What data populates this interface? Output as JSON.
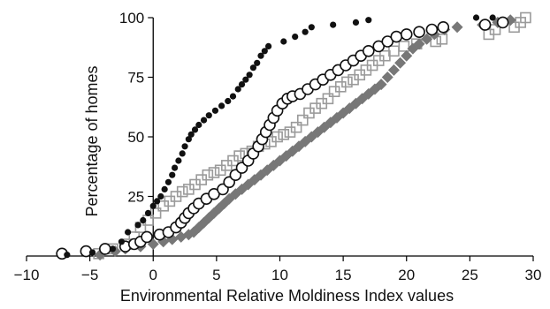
{
  "chart_data": {
    "type": "scatter",
    "title": "",
    "xlabel": "Environmental Relative Moldiness Index values",
    "ylabel": "Percentage of homes",
    "xlim": [
      -10,
      30
    ],
    "ylim": [
      0,
      100
    ],
    "xticks": [
      -10,
      -5,
      0,
      5,
      10,
      15,
      20,
      25,
      30
    ],
    "xtick_labels": [
      "−10",
      "−5",
      "0",
      "5",
      "10",
      "15",
      "20",
      "25",
      "30"
    ],
    "yticks": [
      25,
      50,
      75,
      100
    ],
    "ytick_labels": [
      "25",
      "50",
      "75",
      "100"
    ],
    "grid": false,
    "legend": "none",
    "series": [
      {
        "marker": "filled-circle",
        "color": "#111111",
        "points": [
          [
            -6.8,
            0.5
          ],
          [
            -4.8,
            1.5
          ],
          [
            -3.2,
            3
          ],
          [
            -2.5,
            6
          ],
          [
            -2.0,
            10
          ],
          [
            -1.2,
            13
          ],
          [
            -0.8,
            15
          ],
          [
            -0.4,
            18
          ],
          [
            0.0,
            21
          ],
          [
            0.3,
            23
          ],
          [
            0.6,
            25
          ],
          [
            0.9,
            28
          ],
          [
            1.2,
            31
          ],
          [
            1.5,
            34
          ],
          [
            1.7,
            37
          ],
          [
            2.0,
            40
          ],
          [
            2.3,
            43
          ],
          [
            2.5,
            46
          ],
          [
            2.8,
            49
          ],
          [
            3.0,
            51
          ],
          [
            3.3,
            53
          ],
          [
            3.6,
            55
          ],
          [
            4.0,
            57
          ],
          [
            4.4,
            59
          ],
          [
            4.9,
            61
          ],
          [
            5.4,
            63
          ],
          [
            5.9,
            65
          ],
          [
            6.3,
            67
          ],
          [
            6.7,
            70
          ],
          [
            7.0,
            72
          ],
          [
            7.3,
            74
          ],
          [
            7.6,
            76
          ],
          [
            7.9,
            79
          ],
          [
            8.2,
            81
          ],
          [
            8.5,
            84
          ],
          [
            8.8,
            86
          ],
          [
            9.1,
            88
          ],
          [
            10.3,
            90
          ],
          [
            11.2,
            92
          ],
          [
            12.0,
            94
          ],
          [
            12.5,
            96
          ],
          [
            14.2,
            97
          ],
          [
            16.0,
            98
          ],
          [
            17.0,
            99
          ],
          [
            25.5,
            100
          ],
          [
            26.8,
            100
          ]
        ]
      },
      {
        "marker": "open-circle",
        "color": "#111111",
        "points": [
          [
            -7.2,
            1
          ],
          [
            -5.3,
            2
          ],
          [
            -3.8,
            3
          ],
          [
            -2.2,
            4
          ],
          [
            -1.5,
            5
          ],
          [
            -1.0,
            6
          ],
          [
            -0.5,
            8
          ],
          [
            0.5,
            9
          ],
          [
            1.2,
            10
          ],
          [
            1.8,
            12
          ],
          [
            2.2,
            14
          ],
          [
            2.5,
            16
          ],
          [
            2.8,
            18
          ],
          [
            3.2,
            20
          ],
          [
            3.6,
            22
          ],
          [
            4.2,
            24
          ],
          [
            4.8,
            26
          ],
          [
            5.5,
            28
          ],
          [
            6.0,
            31
          ],
          [
            6.5,
            34
          ],
          [
            7.0,
            37
          ],
          [
            7.5,
            40
          ],
          [
            7.9,
            43
          ],
          [
            8.3,
            46
          ],
          [
            8.6,
            49
          ],
          [
            8.9,
            52
          ],
          [
            9.2,
            55
          ],
          [
            9.5,
            58
          ],
          [
            9.8,
            61
          ],
          [
            10.2,
            64
          ],
          [
            10.6,
            66
          ],
          [
            11.0,
            67
          ],
          [
            11.6,
            68
          ],
          [
            12.2,
            70
          ],
          [
            12.8,
            72
          ],
          [
            13.4,
            74
          ],
          [
            14.0,
            76
          ],
          [
            14.6,
            78
          ],
          [
            15.2,
            80
          ],
          [
            15.8,
            82
          ],
          [
            16.4,
            84
          ],
          [
            17.0,
            86
          ],
          [
            17.8,
            88
          ],
          [
            18.5,
            90
          ],
          [
            19.2,
            92
          ],
          [
            20.0,
            93
          ],
          [
            21.0,
            94
          ],
          [
            22.0,
            95
          ],
          [
            22.9,
            96
          ],
          [
            26.2,
            97
          ],
          [
            27.6,
            98
          ]
        ]
      },
      {
        "marker": "filled-diamond",
        "color": "#777777",
        "points": [
          [
            -4.2,
            0.5
          ],
          [
            -3.0,
            2
          ],
          [
            -2.2,
            3
          ],
          [
            -1.0,
            4
          ],
          [
            0.0,
            5
          ],
          [
            0.8,
            6
          ],
          [
            1.5,
            7
          ],
          [
            2.2,
            8
          ],
          [
            2.8,
            9
          ],
          [
            3.2,
            10
          ],
          [
            3.6,
            12
          ],
          [
            4.0,
            14
          ],
          [
            4.4,
            16
          ],
          [
            4.8,
            18
          ],
          [
            5.2,
            20
          ],
          [
            5.6,
            22
          ],
          [
            6.0,
            24
          ],
          [
            6.5,
            26
          ],
          [
            7.0,
            28
          ],
          [
            7.5,
            30
          ],
          [
            8.0,
            32
          ],
          [
            8.5,
            34
          ],
          [
            9.0,
            36
          ],
          [
            9.5,
            38
          ],
          [
            10.0,
            40
          ],
          [
            10.5,
            42
          ],
          [
            11.0,
            44
          ],
          [
            11.5,
            46
          ],
          [
            12.0,
            48
          ],
          [
            12.5,
            50
          ],
          [
            13.0,
            52
          ],
          [
            13.5,
            54
          ],
          [
            14.0,
            56
          ],
          [
            14.5,
            58
          ],
          [
            15.0,
            60
          ],
          [
            15.5,
            62
          ],
          [
            16.0,
            64
          ],
          [
            16.5,
            66
          ],
          [
            17.0,
            68
          ],
          [
            17.5,
            70
          ],
          [
            18.0,
            72
          ],
          [
            18.5,
            75
          ],
          [
            19.0,
            78
          ],
          [
            19.5,
            81
          ],
          [
            20.0,
            84
          ],
          [
            20.5,
            87
          ],
          [
            21.0,
            89
          ],
          [
            21.6,
            91
          ],
          [
            22.2,
            93
          ],
          [
            23.0,
            95
          ],
          [
            24.0,
            96
          ],
          [
            26.0,
            97
          ],
          [
            27.2,
            98
          ],
          [
            28.2,
            99
          ]
        ]
      },
      {
        "marker": "open-square",
        "color": "#9a9a9a",
        "points": [
          [
            -4.3,
            1
          ],
          [
            -3.2,
            3
          ],
          [
            -2.0,
            5
          ],
          [
            -1.5,
            8
          ],
          [
            -1.0,
            12
          ],
          [
            -0.4,
            15
          ],
          [
            0.2,
            18
          ],
          [
            0.8,
            21
          ],
          [
            1.3,
            23
          ],
          [
            1.8,
            25
          ],
          [
            2.3,
            27
          ],
          [
            2.8,
            28
          ],
          [
            3.3,
            30
          ],
          [
            3.8,
            32
          ],
          [
            4.3,
            34
          ],
          [
            4.8,
            35
          ],
          [
            5.3,
            36
          ],
          [
            5.8,
            38
          ],
          [
            6.3,
            40
          ],
          [
            6.8,
            42
          ],
          [
            7.3,
            43
          ],
          [
            7.8,
            44
          ],
          [
            8.3,
            46
          ],
          [
            8.8,
            47
          ],
          [
            9.3,
            48
          ],
          [
            9.8,
            50
          ],
          [
            10.3,
            51
          ],
          [
            10.8,
            52
          ],
          [
            11.3,
            54
          ],
          [
            11.8,
            57
          ],
          [
            12.3,
            60
          ],
          [
            12.8,
            62
          ],
          [
            13.3,
            64
          ],
          [
            13.8,
            66
          ],
          [
            14.3,
            69
          ],
          [
            14.8,
            71
          ],
          [
            15.3,
            73
          ],
          [
            15.8,
            74
          ],
          [
            16.3,
            76
          ],
          [
            16.8,
            78
          ],
          [
            17.3,
            80
          ],
          [
            17.8,
            82
          ],
          [
            18.3,
            84
          ],
          [
            19.0,
            86
          ],
          [
            19.8,
            88
          ],
          [
            20.8,
            89
          ],
          [
            22.3,
            90
          ],
          [
            22.8,
            91
          ],
          [
            26.5,
            93
          ],
          [
            27.0,
            95
          ],
          [
            28.5,
            96
          ],
          [
            29.0,
            98
          ],
          [
            29.4,
            100
          ]
        ]
      }
    ]
  }
}
